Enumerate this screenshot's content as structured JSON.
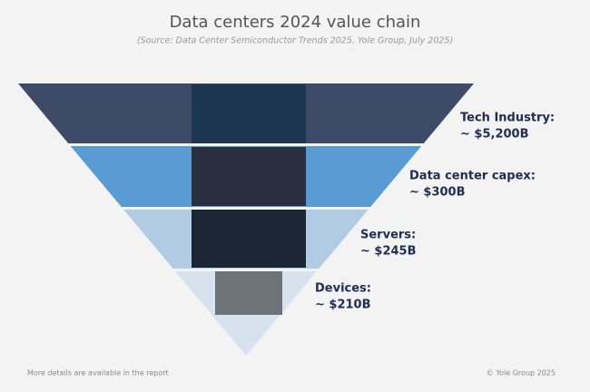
{
  "title": "Data centers 2024 value chain",
  "subtitle": "(Source: Data Center Semiconductor Trends 2025, Yole Group, July 2025)",
  "layers": [
    {
      "label": "Tech Industry:",
      "value": "~ $5,200B"
    },
    {
      "label": "Data center capex:",
      "value": "~ $300B"
    },
    {
      "label": "Servers:",
      "value": "~ $245B"
    },
    {
      "label": "Devices:",
      "value": "~ $210B"
    }
  ],
  "footer": {
    "left": "More details are available in the report",
    "right": "© Yole Group 2025"
  }
}
